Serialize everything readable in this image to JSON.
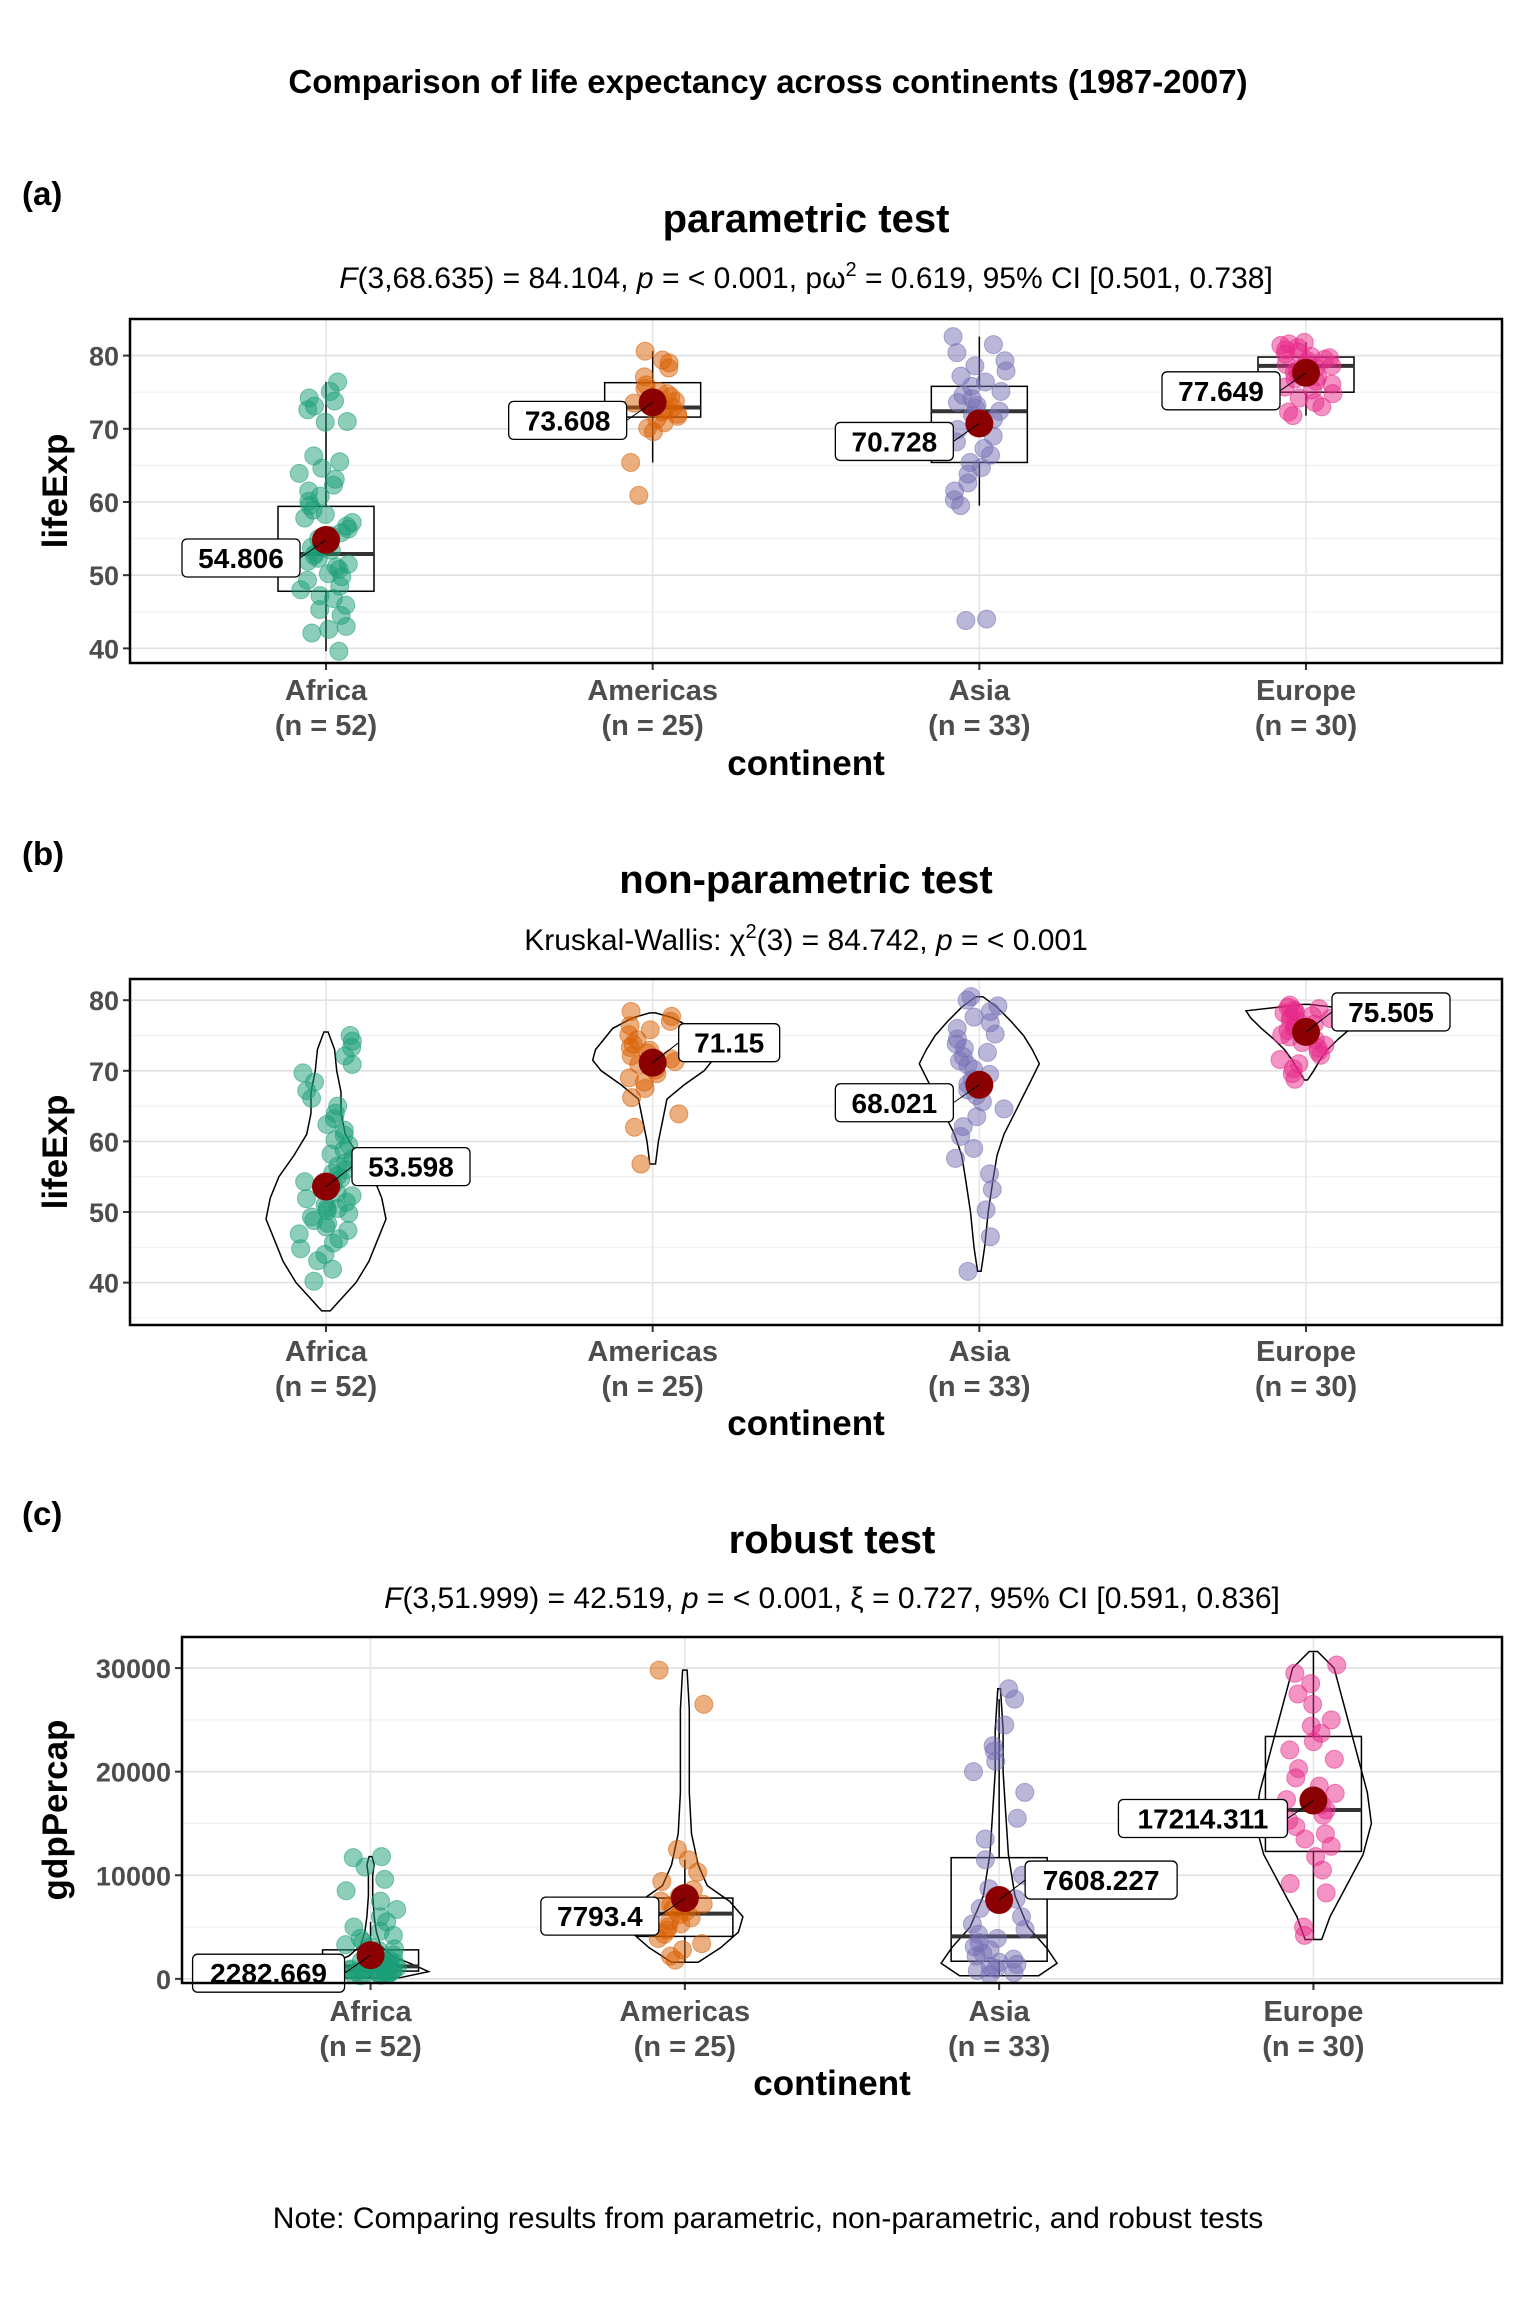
{
  "figure": {
    "title": "Comparison of life expectancy across continents (1987-2007)",
    "caption": "Note: Comparing results from parametric, non-parametric, and robust tests"
  },
  "chart_data": [
    {
      "type": "box-violin",
      "tag": "(a)",
      "title": "parametric test",
      "subtitle": {
        "prefix": "F",
        "text": "(3,68.635) = 84.104, ",
        "p": "p",
        "p_text": " = < 0.001, pω",
        "sup": "2",
        "rest": " = 0.619, 95% CI [0.501, 0.738]"
      },
      "xlabel": "continent",
      "ylabel": "lifeExp",
      "ylim": [
        38,
        85
      ],
      "yticks": [
        40,
        50,
        60,
        70,
        80
      ],
      "grid": true,
      "show_box": true,
      "show_violin": false,
      "categories": [
        "Africa",
        "Americas",
        "Asia",
        "Europe"
      ],
      "counts": [
        "(n = 52)",
        "(n = 25)",
        "(n = 33)",
        "(n = 30)"
      ],
      "colors": [
        "#1B9E77",
        "#D95F02",
        "#7570B3",
        "#E7298A"
      ],
      "box": [
        {
          "q1": 47.8,
          "median": 52.9,
          "q3": 59.4,
          "wlo": 39.6,
          "whi": 76.4
        },
        {
          "q1": 71.6,
          "median": 72.9,
          "q3": 76.3,
          "wlo": 65.4,
          "whi": 80.6
        },
        {
          "q1": 65.4,
          "median": 72.4,
          "q3": 75.8,
          "wlo": 59.5,
          "whi": 82.6
        },
        {
          "q1": 75.0,
          "median": 78.6,
          "q3": 79.8,
          "wlo": 71.8,
          "whi": 81.8
        }
      ],
      "means": [
        54.806,
        73.608,
        70.728,
        77.649
      ],
      "mean_labels": [
        "54.806",
        "73.608",
        "70.728",
        "77.649"
      ],
      "label_side": [
        "left",
        "left",
        "left",
        "left"
      ],
      "points": [
        [
          42.1,
          42.6,
          43.0,
          44.5,
          45.3,
          45.9,
          46.8,
          47.2,
          48.0,
          48.5,
          49.3,
          49.8,
          50.2,
          50.8,
          51.1,
          51.5,
          51.9,
          52.3,
          52.7,
          53.0,
          53.4,
          53.8,
          54.1,
          54.6,
          55.0,
          55.4,
          55.8,
          56.3,
          56.7,
          57.2,
          57.8,
          58.3,
          58.9,
          59.5,
          60.1,
          60.8,
          61.5,
          62.3,
          63.1,
          63.9,
          64.6,
          65.5,
          66.3,
          70.9,
          71.0,
          72.6,
          73.1,
          73.8,
          74.2,
          75.1,
          76.4,
          39.6
        ],
        [
          60.9,
          65.4,
          69.6,
          70.1,
          70.8,
          71.3,
          71.7,
          72.0,
          72.3,
          72.6,
          72.9,
          73.2,
          73.5,
          73.8,
          74.1,
          74.4,
          74.8,
          75.1,
          75.5,
          76.0,
          77.1,
          78.3,
          79.0,
          79.4,
          80.6
        ],
        [
          43.8,
          44.0,
          59.5,
          60.3,
          61.5,
          62.6,
          63.8,
          64.7,
          65.4,
          66.4,
          67.3,
          68.2,
          69.0,
          69.9,
          70.6,
          71.3,
          71.9,
          72.4,
          72.8,
          73.2,
          73.6,
          74.1,
          74.6,
          75.1,
          75.8,
          76.4,
          77.2,
          77.9,
          78.6,
          79.3,
          80.4,
          81.5,
          82.6
        ],
        [
          71.8,
          72.3,
          73.0,
          73.6,
          74.2,
          74.8,
          75.3,
          75.7,
          76.1,
          76.5,
          76.8,
          77.1,
          77.4,
          77.7,
          78.0,
          78.3,
          78.6,
          78.8,
          79.0,
          79.3,
          79.5,
          79.7,
          79.9,
          80.2,
          80.5,
          80.8,
          81.1,
          81.4,
          81.6,
          81.8
        ]
      ]
    },
    {
      "type": "violin",
      "tag": "(b)",
      "title": "non-parametric test",
      "subtitle": {
        "prefix": "",
        "text": "Kruskal-Wallis: χ",
        "sup": "2",
        "mid": "(3) = 84.742, ",
        "p": "p",
        "rest": " = < 0.001"
      },
      "xlabel": "continent",
      "ylabel": "lifeExp",
      "ylim": [
        34,
        83
      ],
      "yticks": [
        40,
        50,
        60,
        70,
        80
      ],
      "grid": true,
      "show_box": false,
      "show_violin": true,
      "categories": [
        "Africa",
        "Americas",
        "Asia",
        "Europe"
      ],
      "counts": [
        "(n = 52)",
        "(n = 25)",
        "(n = 33)",
        "(n = 30)"
      ],
      "colors": [
        "#1B9E77",
        "#D95F02",
        "#7570B3",
        "#E7298A"
      ],
      "violin": [
        {
          "lo": 36.0,
          "hi": 75.5,
          "profile": [
            [
              36,
              2
            ],
            [
              38,
              8
            ],
            [
              40,
              14
            ],
            [
              43,
              20
            ],
            [
              46,
              24
            ],
            [
              49,
              28
            ],
            [
              52,
              26
            ],
            [
              55,
              22
            ],
            [
              58,
              15
            ],
            [
              61,
              9
            ],
            [
              64,
              7
            ],
            [
              67,
              7
            ],
            [
              70,
              5
            ],
            [
              73,
              4
            ],
            [
              75.5,
              1
            ]
          ]
        },
        {
          "lo": 56.8,
          "hi": 78.2,
          "profile": [
            [
              56.8,
              2
            ],
            [
              60,
              4
            ],
            [
              63,
              7
            ],
            [
              66,
              10
            ],
            [
              68,
              22
            ],
            [
              70,
              36
            ],
            [
              71.5,
              42
            ],
            [
              73,
              40
            ],
            [
              74.5,
              34
            ],
            [
              76,
              28
            ],
            [
              77.5,
              14
            ],
            [
              78.2,
              2
            ]
          ]
        },
        {
          "lo": 41.6,
          "hi": 80.5,
          "profile": [
            [
              41.6,
              1
            ],
            [
              45,
              3
            ],
            [
              50,
              5
            ],
            [
              55,
              8
            ],
            [
              58,
              10
            ],
            [
              61,
              14
            ],
            [
              64,
              20
            ],
            [
              67,
              26
            ],
            [
              69,
              30
            ],
            [
              71,
              34
            ],
            [
              73,
              30
            ],
            [
              75,
              25
            ],
            [
              77,
              18
            ],
            [
              79,
              10
            ],
            [
              80.5,
              2
            ]
          ]
        },
        {
          "lo": 68.7,
          "hi": 79.4,
          "profile": [
            [
              68.7,
              2
            ],
            [
              70,
              10
            ],
            [
              71.5,
              18
            ],
            [
              73,
              28
            ],
            [
              74.5,
              42
            ],
            [
              76,
              58
            ],
            [
              77.5,
              72
            ],
            [
              78.5,
              78
            ],
            [
              79.4,
              4
            ]
          ]
        }
      ],
      "means": [
        53.598,
        71.15,
        68.021,
        75.505
      ],
      "mean_labels": [
        "53.598",
        "71.15",
        "68.021",
        "75.505"
      ],
      "label_side": [
        "right",
        "right",
        "left",
        "right"
      ],
      "points": [
        [
          40.2,
          41.9,
          43.1,
          44.0,
          44.8,
          45.6,
          46.2,
          46.9,
          47.4,
          47.9,
          48.4,
          48.8,
          49.3,
          49.8,
          50.2,
          50.6,
          51.0,
          51.4,
          51.9,
          52.3,
          52.7,
          53.1,
          53.5,
          53.9,
          54.3,
          54.7,
          55.1,
          55.5,
          56.0,
          56.5,
          57.0,
          57.6,
          58.2,
          58.8,
          59.5,
          60.2,
          60.9,
          61.6,
          62.4,
          63.2,
          64.0,
          65.0,
          66.1,
          67.2,
          68.4,
          69.7,
          70.9,
          72.1,
          73.3,
          74.2,
          75.0,
          50.5
        ],
        [
          56.8,
          62.0,
          63.9,
          66.2,
          67.5,
          68.4,
          69.0,
          69.6,
          70.1,
          70.5,
          70.9,
          71.3,
          71.7,
          72.1,
          72.5,
          72.9,
          73.3,
          73.8,
          74.4,
          75.1,
          75.8,
          76.4,
          77.0,
          77.7,
          78.4
        ],
        [
          41.6,
          46.5,
          50.3,
          53.2,
          55.4,
          57.6,
          59.0,
          60.7,
          62.1,
          63.5,
          64.6,
          65.6,
          66.5,
          67.3,
          68.1,
          68.8,
          69.5,
          70.2,
          70.8,
          71.4,
          72.0,
          72.6,
          73.2,
          73.8,
          74.5,
          75.2,
          76.0,
          76.8,
          77.6,
          78.4,
          79.2,
          80.0,
          80.5
        ],
        [
          68.8,
          69.6,
          70.3,
          71.0,
          71.6,
          72.2,
          72.7,
          73.2,
          73.6,
          74.0,
          74.4,
          74.8,
          75.1,
          75.4,
          75.7,
          76.0,
          76.3,
          76.6,
          76.9,
          77.2,
          77.4,
          77.6,
          77.8,
          78.0,
          78.2,
          78.4,
          78.6,
          78.8,
          79.0,
          79.3
        ]
      ]
    },
    {
      "type": "box-violin",
      "tag": "(c)",
      "title": "robust test",
      "subtitle": {
        "prefix": "F",
        "text": "(3,51.999) = 42.519, ",
        "p": "p",
        "p_text": " = < 0.001, ξ",
        "sup": "",
        "rest": " = 0.727, 95% CI [0.591, 0.836]"
      },
      "xlabel": "continent",
      "ylabel": "gdpPercap",
      "ylim": [
        -400,
        33000
      ],
      "yticks": [
        0,
        10000,
        20000,
        30000
      ],
      "grid": true,
      "show_box": true,
      "show_violin": true,
      "categories": [
        "Africa",
        "Americas",
        "Asia",
        "Europe"
      ],
      "counts": [
        "(n = 52)",
        "(n = 25)",
        "(n = 33)",
        "(n = 30)"
      ],
      "colors": [
        "#1B9E77",
        "#D95F02",
        "#7570B3",
        "#E7298A"
      ],
      "box": [
        {
          "q1": 750,
          "median": 1200,
          "q3": 2800,
          "wlo": 200,
          "whi": 5500
        },
        {
          "q1": 4100,
          "median": 6300,
          "q3": 7800,
          "wlo": 1600,
          "whi": 11500
        },
        {
          "q1": 1700,
          "median": 4100,
          "q3": 11700,
          "wlo": 300,
          "whi": 27000
        },
        {
          "q1": 12300,
          "median": 16300,
          "q3": 23400,
          "wlo": 3800,
          "whi": 31500
        }
      ],
      "violin": [
        {
          "lo": 100,
          "hi": 11800,
          "profile": [
            [
              100,
              40
            ],
            [
              700,
              80
            ],
            [
              1400,
              58
            ],
            [
              2200,
              30
            ],
            [
              3200,
              14
            ],
            [
              4500,
              8
            ],
            [
              6000,
              5
            ],
            [
              8000,
              3
            ],
            [
              10000,
              3
            ],
            [
              11000,
              5
            ],
            [
              11800,
              2
            ]
          ]
        },
        {
          "lo": 1600,
          "hi": 29800,
          "profile": [
            [
              1600,
              6
            ],
            [
              3000,
              16
            ],
            [
              4500,
              24
            ],
            [
              6000,
              26
            ],
            [
              7500,
              20
            ],
            [
              9000,
              10
            ],
            [
              11000,
              6
            ],
            [
              14000,
              3
            ],
            [
              18000,
              2
            ],
            [
              22000,
              2
            ],
            [
              26000,
              2
            ],
            [
              29800,
              1
            ]
          ]
        },
        {
          "lo": 300,
          "hi": 28000,
          "profile": [
            [
              300,
              30
            ],
            [
              1500,
              44
            ],
            [
              3000,
              36
            ],
            [
              5000,
              22
            ],
            [
              8000,
              12
            ],
            [
              12000,
              7
            ],
            [
              16000,
              5
            ],
            [
              20000,
              3
            ],
            [
              24000,
              3
            ],
            [
              28000,
              1
            ]
          ]
        },
        {
          "lo": 3800,
          "hi": 31600,
          "profile": [
            [
              3800,
              2
            ],
            [
              6000,
              4
            ],
            [
              9000,
              8
            ],
            [
              12000,
              12
            ],
            [
              15000,
              14
            ],
            [
              18000,
              13
            ],
            [
              21000,
              11
            ],
            [
              24000,
              9
            ],
            [
              27000,
              7
            ],
            [
              30000,
              5
            ],
            [
              31600,
              1
            ]
          ]
        }
      ],
      "means": [
        2282.669,
        7793.4,
        7608.227,
        17214.311
      ],
      "mean_labels": [
        "2282.669",
        "7793.4",
        "7608.227",
        "17214.311"
      ],
      "label_side": [
        "left",
        "left",
        "right",
        "left"
      ],
      "points": [
        [
          300,
          350,
          400,
          450,
          480,
          520,
          560,
          600,
          640,
          680,
          720,
          760,
          800,
          850,
          900,
          950,
          1000,
          1050,
          1100,
          1150,
          1200,
          1260,
          1320,
          1380,
          1450,
          1520,
          1600,
          1700,
          1800,
          1900,
          2000,
          2150,
          2300,
          2500,
          2700,
          2900,
          3100,
          3300,
          3600,
          3900,
          4200,
          4600,
          5000,
          5500,
          6000,
          6700,
          7500,
          8500,
          9600,
          10800,
          11700,
          11800
        ],
        [
          1800,
          2200,
          2800,
          3400,
          3900,
          4300,
          4700,
          5000,
          5300,
          5600,
          5900,
          6200,
          6500,
          6800,
          7100,
          7500,
          8000,
          8600,
          9400,
          10300,
          11500,
          12500,
          26500,
          29800,
          7200
        ],
        [
          400,
          600,
          800,
          1000,
          1200,
          1400,
          1600,
          1900,
          2200,
          2500,
          2800,
          3100,
          3500,
          3900,
          4300,
          4800,
          5300,
          6000,
          6800,
          7700,
          8700,
          10000,
          11500,
          13500,
          15500,
          18000,
          20000,
          22000,
          22500,
          21000,
          24500,
          27000,
          28000
        ],
        [
          4200,
          5000,
          8300,
          9200,
          10500,
          11800,
          12800,
          13500,
          14000,
          14700,
          15300,
          15800,
          16300,
          16800,
          17300,
          17900,
          18600,
          19400,
          20300,
          21200,
          22100,
          22900,
          23700,
          24400,
          25000,
          26500,
          27500,
          28500,
          29500,
          30300
        ]
      ]
    }
  ]
}
